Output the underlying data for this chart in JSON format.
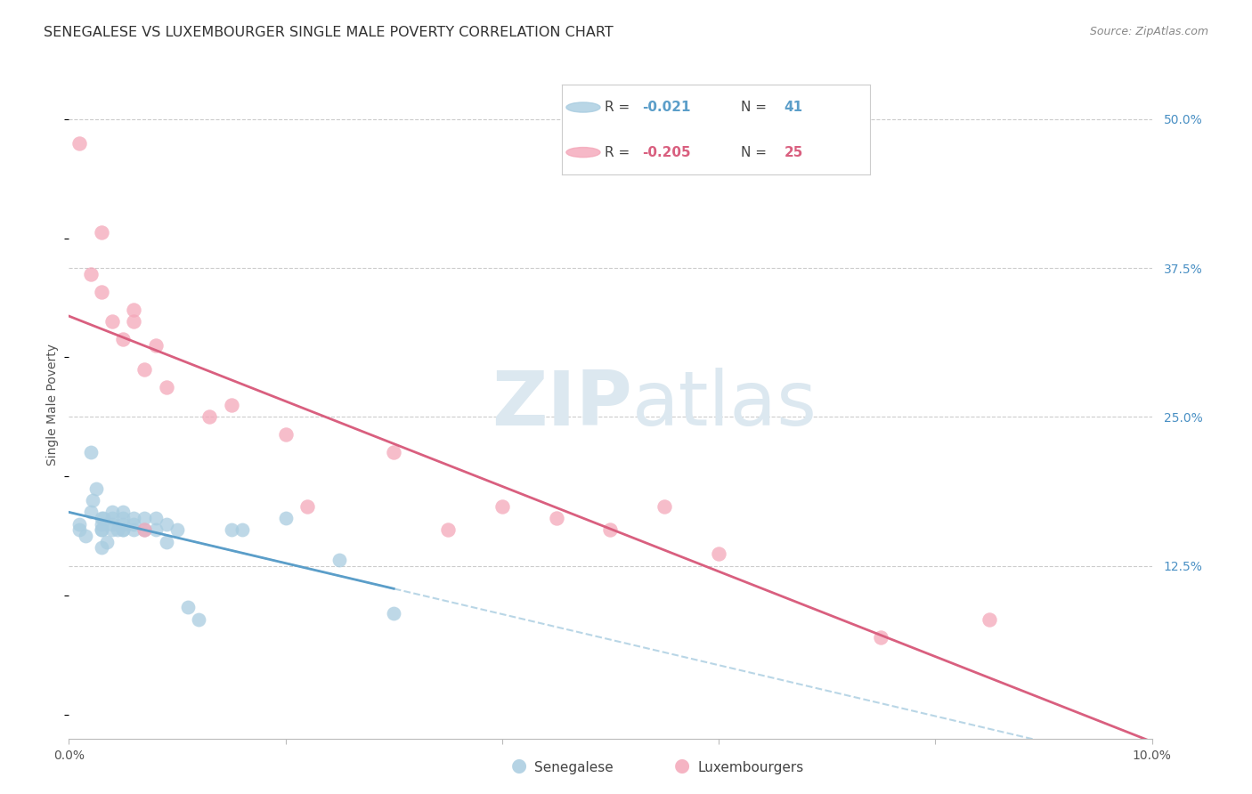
{
  "title": "SENEGALESE VS LUXEMBOURGER SINGLE MALE POVERTY CORRELATION CHART",
  "source": "Source: ZipAtlas.com",
  "ylabel": "Single Male Poverty",
  "xlim": [
    0.0,
    0.1
  ],
  "ylim": [
    -0.02,
    0.54
  ],
  "yticks": [
    0.0,
    0.125,
    0.25,
    0.375,
    0.5
  ],
  "ytick_labels": [
    "",
    "12.5%",
    "25.0%",
    "37.5%",
    "50.0%"
  ],
  "xticks": [
    0.0,
    0.02,
    0.04,
    0.06,
    0.08,
    0.1
  ],
  "xtick_labels": [
    "0.0%",
    "",
    "",
    "",
    "",
    "10.0%"
  ],
  "senegalese_R": -0.021,
  "senegalese_N": 41,
  "luxembourger_R": -0.205,
  "luxembourger_N": 25,
  "blue_scatter_color": "#a8cce0",
  "pink_scatter_color": "#f4a7b9",
  "blue_line_color": "#5b9ec9",
  "pink_line_color": "#d95f7f",
  "blue_dash_color": "#a8cce0",
  "right_tick_color": "#4a90c4",
  "grid_color": "#cccccc",
  "background_color": "#ffffff",
  "watermark_color": "#dce8f0",
  "senegalese_x": [
    0.001,
    0.001,
    0.0015,
    0.002,
    0.002,
    0.0022,
    0.0025,
    0.003,
    0.003,
    0.003,
    0.003,
    0.003,
    0.0032,
    0.0035,
    0.004,
    0.004,
    0.004,
    0.004,
    0.0045,
    0.005,
    0.005,
    0.005,
    0.005,
    0.005,
    0.006,
    0.006,
    0.006,
    0.007,
    0.007,
    0.008,
    0.008,
    0.009,
    0.009,
    0.01,
    0.011,
    0.012,
    0.015,
    0.016,
    0.02,
    0.025,
    0.03
  ],
  "senegalese_y": [
    0.155,
    0.16,
    0.15,
    0.22,
    0.17,
    0.18,
    0.19,
    0.155,
    0.16,
    0.165,
    0.155,
    0.14,
    0.165,
    0.145,
    0.165,
    0.155,
    0.16,
    0.17,
    0.155,
    0.155,
    0.16,
    0.165,
    0.155,
    0.17,
    0.155,
    0.165,
    0.16,
    0.165,
    0.155,
    0.165,
    0.155,
    0.145,
    0.16,
    0.155,
    0.09,
    0.08,
    0.155,
    0.155,
    0.165,
    0.13,
    0.085
  ],
  "luxembourger_x": [
    0.001,
    0.002,
    0.003,
    0.003,
    0.004,
    0.005,
    0.006,
    0.006,
    0.007,
    0.007,
    0.008,
    0.009,
    0.013,
    0.015,
    0.02,
    0.022,
    0.03,
    0.035,
    0.04,
    0.045,
    0.05,
    0.055,
    0.06,
    0.075,
    0.085
  ],
  "luxembourger_y": [
    0.48,
    0.37,
    0.355,
    0.405,
    0.33,
    0.315,
    0.34,
    0.33,
    0.29,
    0.155,
    0.31,
    0.275,
    0.25,
    0.26,
    0.235,
    0.175,
    0.22,
    0.155,
    0.175,
    0.165,
    0.155,
    0.175,
    0.135,
    0.065,
    0.08
  ],
  "title_fontsize": 11.5,
  "axis_label_fontsize": 10,
  "tick_fontsize": 10,
  "legend_fontsize": 11
}
